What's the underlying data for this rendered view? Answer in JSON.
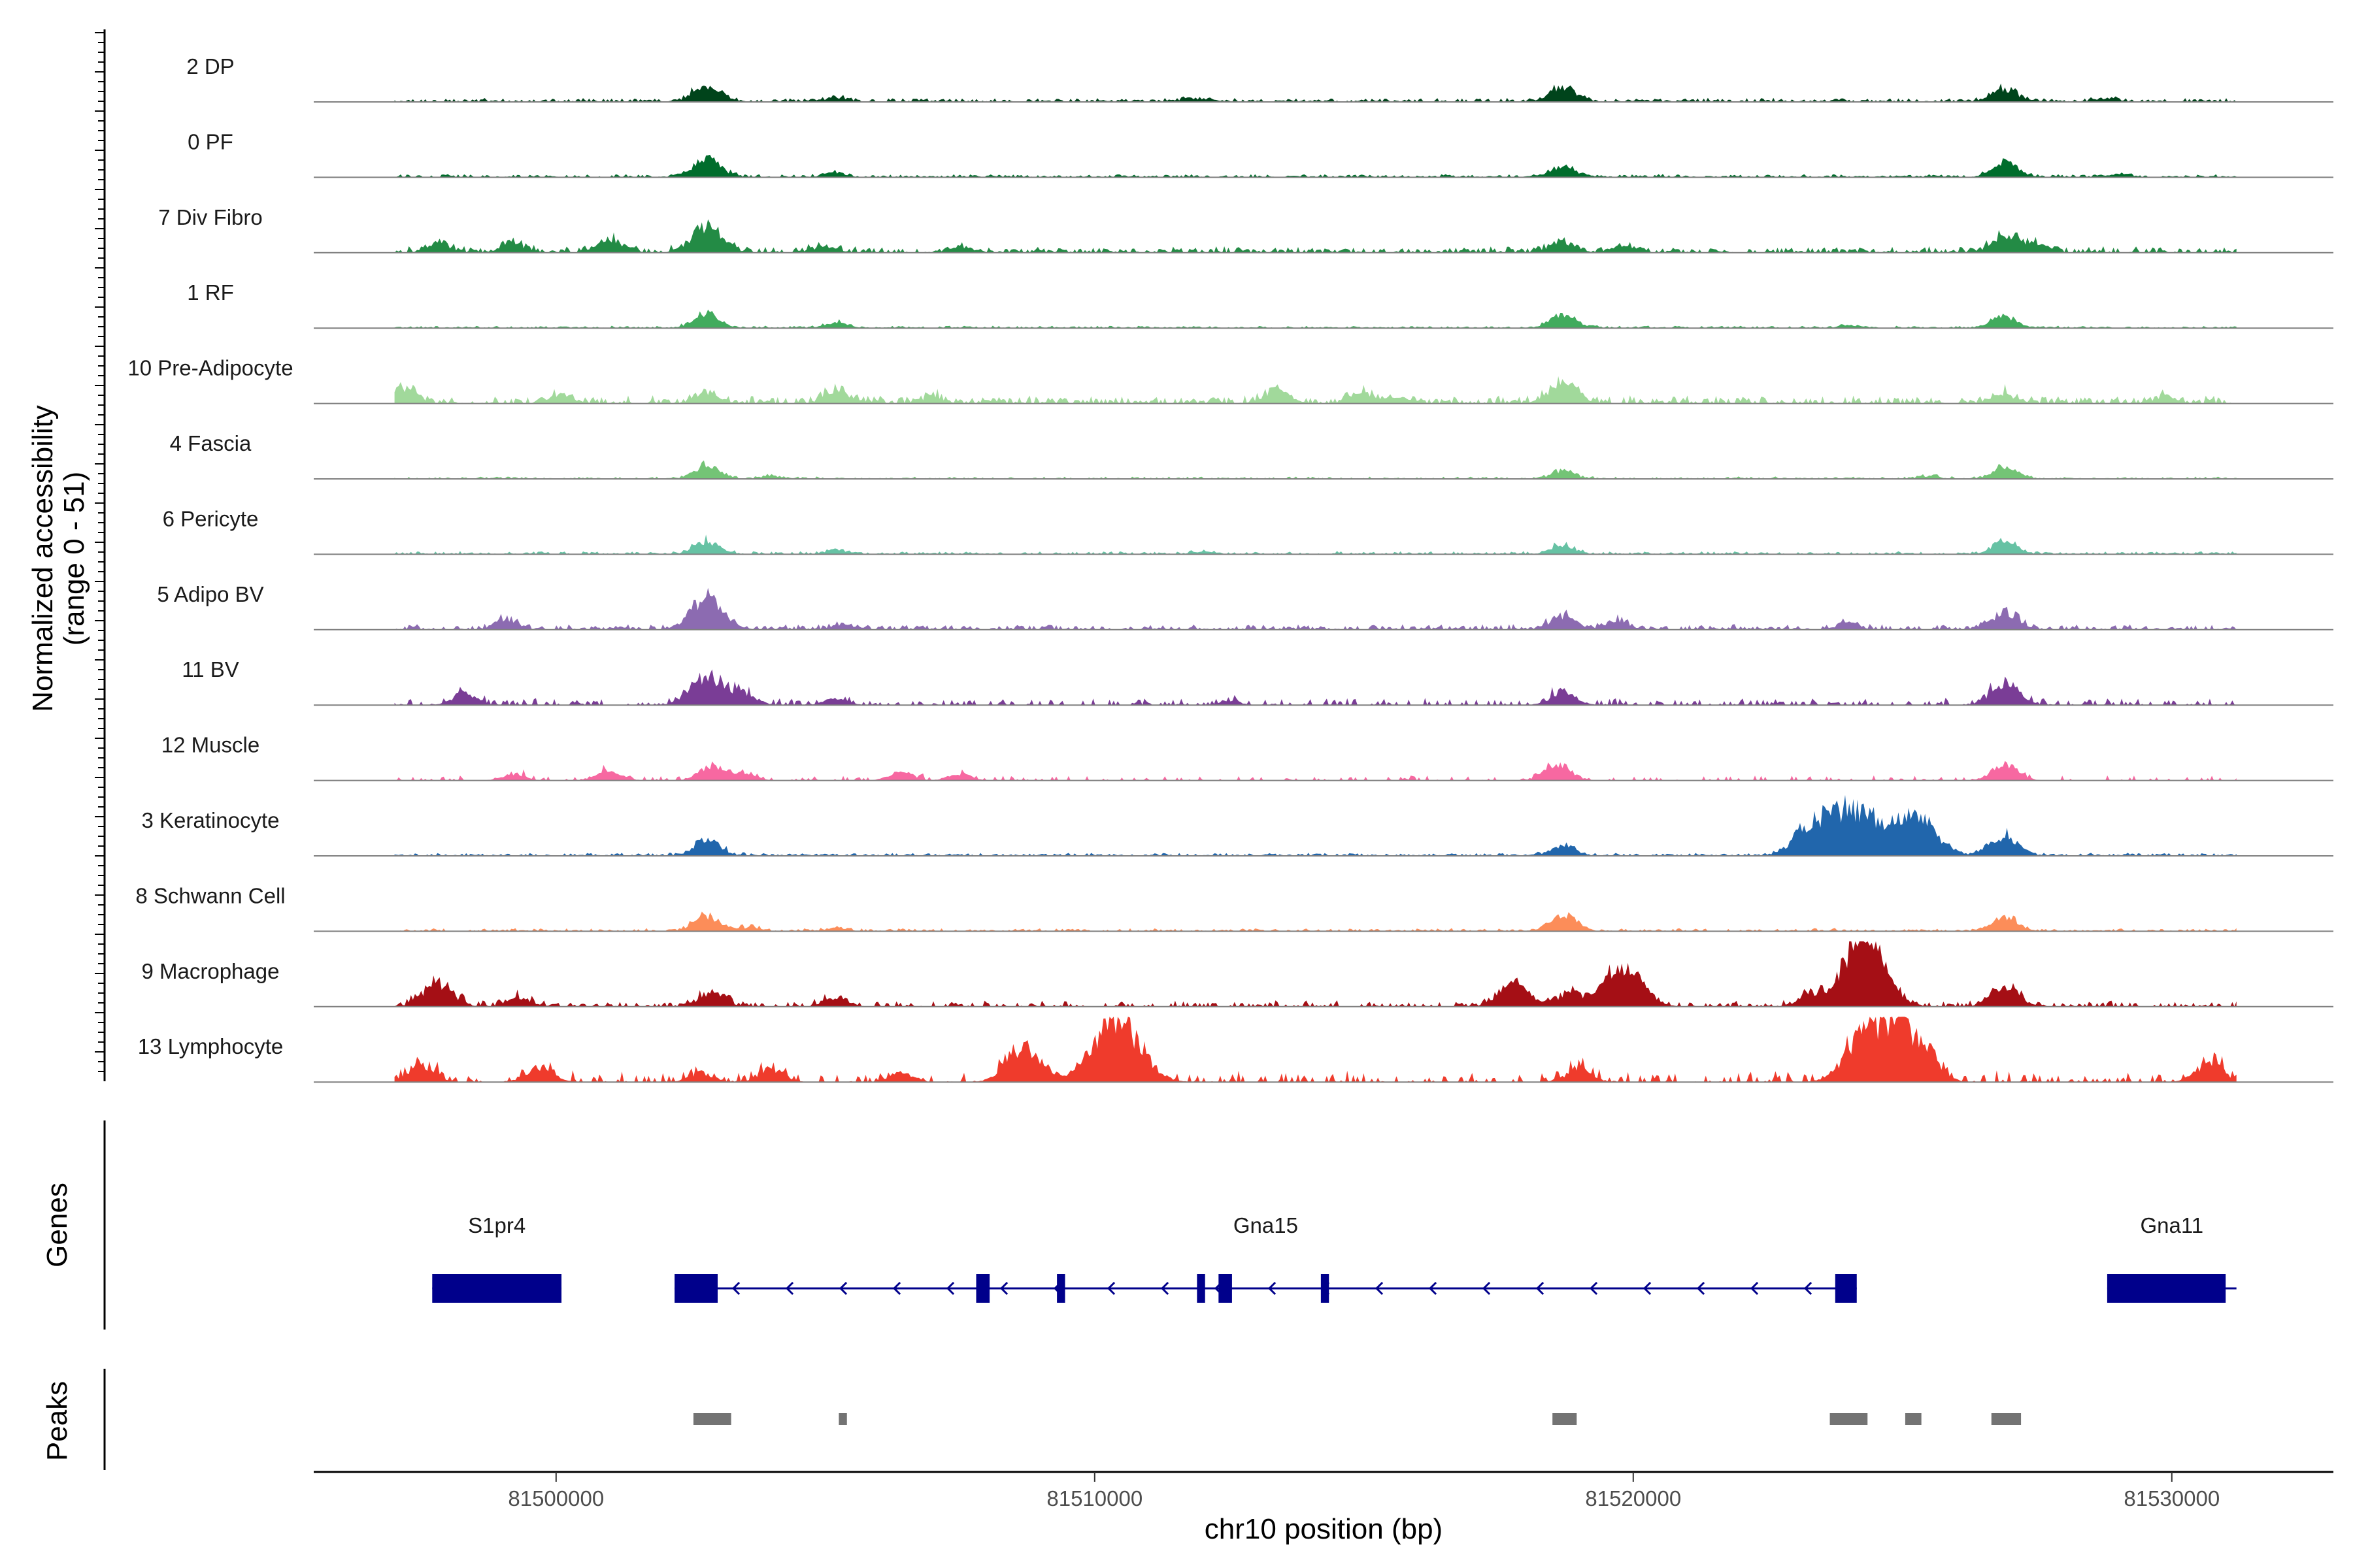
{
  "chart_data": {
    "type": "genome_browser",
    "chromosome": "chr10",
    "xlabel": "chr10 position (bp)",
    "xlim": [
      81495500,
      81533000
    ],
    "x_ticks": [
      81500000,
      81510000,
      81520000,
      81530000
    ],
    "x_tick_labels": [
      "81500000",
      "81510000",
      "81520000",
      "81530000"
    ],
    "y_axis": {
      "label_line1": "Normalized accessibility",
      "label_line2": "(range 0 - 51)",
      "range": [
        0,
        51
      ]
    },
    "tracks": [
      {
        "name": "2 DP",
        "color": "#00441b",
        "peaks": [
          [
            81502800,
            0.26
          ],
          [
            81505200,
            0.06
          ],
          [
            81511800,
            0.06
          ],
          [
            81518700,
            0.22
          ],
          [
            81526900,
            0.2
          ],
          [
            81528800,
            0.05
          ]
        ],
        "noise": 0.05,
        "density": 0.8
      },
      {
        "name": "0 PF",
        "color": "#006d2c",
        "peaks": [
          [
            81502800,
            0.28
          ],
          [
            81505200,
            0.06
          ],
          [
            81518700,
            0.16
          ],
          [
            81526900,
            0.22
          ],
          [
            81529000,
            0.04
          ]
        ],
        "noise": 0.04,
        "density": 0.8
      },
      {
        "name": "7 Div Fibro",
        "color": "#238b45",
        "peaks": [
          [
            81497800,
            0.12
          ],
          [
            81499200,
            0.14
          ],
          [
            81501000,
            0.2
          ],
          [
            81502800,
            0.38
          ],
          [
            81505000,
            0.1
          ],
          [
            81507500,
            0.08
          ],
          [
            81518700,
            0.16
          ],
          [
            81519800,
            0.1
          ],
          [
            81526900,
            0.24
          ],
          [
            81527500,
            0.14
          ]
        ],
        "noise": 0.08,
        "density": 0.7
      },
      {
        "name": "1 RF",
        "color": "#41ab5d",
        "peaks": [
          [
            81502800,
            0.22
          ],
          [
            81505200,
            0.08
          ],
          [
            81518700,
            0.2
          ],
          [
            81526900,
            0.18
          ],
          [
            81524000,
            0.04
          ]
        ],
        "noise": 0.03,
        "density": 0.8
      },
      {
        "name": "10 Pre-Adipocyte",
        "color": "#a1d99b",
        "peaks": [
          [
            81497200,
            0.2
          ],
          [
            81500100,
            0.12
          ],
          [
            81502800,
            0.16
          ],
          [
            81505200,
            0.18
          ],
          [
            81507000,
            0.1
          ],
          [
            81513400,
            0.2
          ],
          [
            81515000,
            0.14
          ],
          [
            81518700,
            0.3
          ],
          [
            81526900,
            0.14
          ],
          [
            81529900,
            0.1
          ]
        ],
        "noise": 0.1,
        "density": 0.7
      },
      {
        "name": "4 Fascia",
        "color": "#74c476",
        "peaks": [
          [
            81502800,
            0.2
          ],
          [
            81504000,
            0.04
          ],
          [
            81518700,
            0.12
          ],
          [
            81526900,
            0.18
          ],
          [
            81525500,
            0.04
          ]
        ],
        "noise": 0.03,
        "density": 0.7
      },
      {
        "name": "6 Pericyte",
        "color": "#66c2a4",
        "peaks": [
          [
            81502800,
            0.2
          ],
          [
            81505200,
            0.07
          ],
          [
            81512000,
            0.04
          ],
          [
            81518700,
            0.14
          ],
          [
            81526900,
            0.18
          ]
        ],
        "noise": 0.04,
        "density": 0.7
      },
      {
        "name": "5 Adipo BV",
        "color": "#8c6bb1",
        "peaks": [
          [
            81499100,
            0.14
          ],
          [
            81502800,
            0.46
          ],
          [
            81505300,
            0.08
          ],
          [
            81518700,
            0.22
          ],
          [
            81519700,
            0.12
          ],
          [
            81524000,
            0.1
          ],
          [
            81526900,
            0.26
          ]
        ],
        "noise": 0.07,
        "density": 0.7
      },
      {
        "name": "11 BV",
        "color": "#7a3d96",
        "peaks": [
          [
            81498300,
            0.16
          ],
          [
            81502800,
            0.46
          ],
          [
            81503500,
            0.16
          ],
          [
            81505200,
            0.1
          ],
          [
            81512500,
            0.06
          ],
          [
            81518700,
            0.2
          ],
          [
            81526900,
            0.32
          ]
        ],
        "noise": 0.09,
        "density": 0.45
      },
      {
        "name": "12 Muscle",
        "color": "#f768a1",
        "peaks": [
          [
            81499200,
            0.1
          ],
          [
            81501000,
            0.16
          ],
          [
            81502900,
            0.22
          ],
          [
            81503500,
            0.1
          ],
          [
            81506400,
            0.14
          ],
          [
            81507500,
            0.1
          ],
          [
            81518600,
            0.24
          ],
          [
            81526900,
            0.24
          ]
        ],
        "noise": 0.07,
        "density": 0.3
      },
      {
        "name": "3 Keratinocyte",
        "color": "#2166ac",
        "peaks": [
          [
            81502800,
            0.24
          ],
          [
            81518700,
            0.16
          ],
          [
            81523300,
            0.46
          ],
          [
            81524000,
            0.64
          ],
          [
            81524600,
            0.36
          ],
          [
            81525300,
            0.58
          ],
          [
            81526900,
            0.3
          ]
        ],
        "noise": 0.04,
        "density": 0.8
      },
      {
        "name": "8 Schwann Cell",
        "color": "#fc8d59",
        "peaks": [
          [
            81502800,
            0.22
          ],
          [
            81503600,
            0.06
          ],
          [
            81505200,
            0.05
          ],
          [
            81518700,
            0.26
          ],
          [
            81526900,
            0.2
          ]
        ],
        "noise": 0.04,
        "density": 0.7
      },
      {
        "name": "9 Macrophage",
        "color": "#a50f15",
        "peaks": [
          [
            81497800,
            0.36
          ],
          [
            81499300,
            0.14
          ],
          [
            81502900,
            0.22
          ],
          [
            81505200,
            0.14
          ],
          [
            81517800,
            0.36
          ],
          [
            81518800,
            0.2
          ],
          [
            81519800,
            0.64
          ],
          [
            81523300,
            0.18
          ],
          [
            81524100,
            0.5
          ],
          [
            81524400,
            0.68
          ],
          [
            81526900,
            0.3
          ]
        ],
        "noise": 0.08,
        "density": 0.55
      },
      {
        "name": "13 Lymphocyte",
        "color": "#ef3b2c",
        "peaks": [
          [
            81497500,
            0.24
          ],
          [
            81499700,
            0.24
          ],
          [
            81502700,
            0.14
          ],
          [
            81504000,
            0.2
          ],
          [
            81506400,
            0.14
          ],
          [
            81508700,
            0.52
          ],
          [
            81510400,
            0.96
          ],
          [
            81519000,
            0.2
          ],
          [
            81524400,
            0.8
          ],
          [
            81525000,
            0.46
          ],
          [
            81525400,
            0.4
          ],
          [
            81530700,
            0.28
          ]
        ],
        "noise": 0.14,
        "density": 0.35
      }
    ],
    "genes": [
      {
        "name": "S1pr4",
        "start": 81497700,
        "end": 81500100,
        "strand": "+",
        "exons": [
          [
            81497700,
            81500100
          ]
        ]
      },
      {
        "name": "Gna15",
        "start": 81502200,
        "end": 81524150,
        "strand": "-",
        "exons": [
          [
            81502200,
            81503000
          ],
          [
            81507800,
            81508050
          ],
          [
            81509300,
            81509450
          ],
          [
            81511900,
            81512050
          ],
          [
            81512300,
            81512550
          ],
          [
            81514200,
            81514350
          ],
          [
            81523750,
            81524150
          ]
        ]
      },
      {
        "name": "Gna11",
        "start": 81528800,
        "end": 81531200,
        "strand": "+",
        "exons": [
          [
            81528800,
            81531000
          ]
        ]
      }
    ],
    "genes_track_label": "Genes",
    "peaks_track_label": "Peaks",
    "peak_regions": [
      [
        81502550,
        81503250
      ],
      [
        81505250,
        81505400
      ],
      [
        81518500,
        81518950
      ],
      [
        81523650,
        81524350
      ],
      [
        81525050,
        81525350
      ],
      [
        81526650,
        81527200
      ]
    ],
    "peak_color": "#737373",
    "gene_color": "#00008b"
  }
}
